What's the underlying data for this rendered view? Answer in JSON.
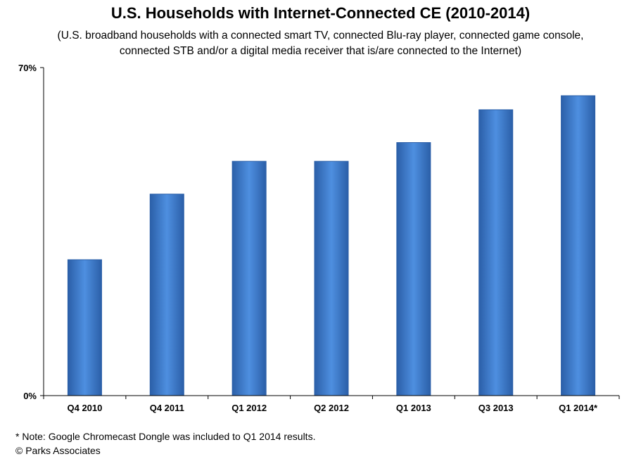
{
  "title": "U.S. Households with Internet-Connected CE (2010-2014)",
  "subtitle_lines": [
    "(U.S. broadband households with a connected smart TV, connected Blu-ray player, connected game console,",
    "connected STB and/or a digital media receiver that is/are connected to the Internet)"
  ],
  "footnotes": {
    "note": "* Note: Google Chromecast Dongle was included to Q1 2014 results.",
    "copyright": "© Parks Associates"
  },
  "colors": {
    "bar": "#3a78c9",
    "bar_light": "#4e8fe0",
    "bar_dark": "#2b5fa8",
    "axis": "#000000"
  },
  "chart_data": {
    "type": "bar",
    "categories": [
      "Q4 2010",
      "Q4 2011",
      "Q1 2012",
      "Q2 2012",
      "Q1 2013",
      "Q3 2013",
      "Q1 2014*"
    ],
    "values": [
      29,
      43,
      50,
      50,
      54,
      61,
      64
    ],
    "ylim": [
      0,
      70
    ],
    "yticks": [
      "0%",
      "70%"
    ],
    "grid": false
  }
}
